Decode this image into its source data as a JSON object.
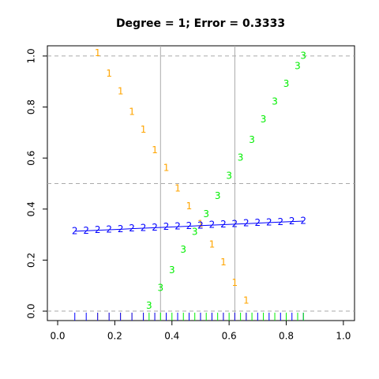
{
  "chart_data": {
    "type": "scatter",
    "title": "Degree = 1; Error = 0.3333",
    "xlim": [
      -0.036,
      1.039
    ],
    "ylim": [
      -0.037,
      1.04
    ],
    "xticks": [
      {
        "value": 0,
        "label": "0.0"
      },
      0.2,
      0.4,
      0.6,
      0.8,
      {
        "value": 1,
        "label": "1.0"
      }
    ],
    "yticks": [
      {
        "value": 0,
        "label": "0.0"
      },
      0.2,
      0.4,
      0.6,
      0.8,
      {
        "value": 1,
        "label": "1.0"
      }
    ],
    "vlines": [
      0.36,
      0.62
    ],
    "hlines": [
      0,
      0.5,
      1
    ],
    "rug": true,
    "series": [
      {
        "marker": "1",
        "color": "#ffa500",
        "x": [
          0.14,
          0.18,
          0.22,
          0.26,
          0.3,
          0.34,
          0.38,
          0.42,
          0.46,
          0.5,
          0.54,
          0.58,
          0.62,
          0.66
        ],
        "values": [
          1.01,
          0.93,
          0.86,
          0.78,
          0.71,
          0.63,
          0.56,
          0.48,
          0.41,
          0.34,
          0.26,
          0.19,
          0.11,
          0.04
        ]
      },
      {
        "marker": "2",
        "color": "#0000ff",
        "line": true,
        "x": [
          0.06,
          0.1,
          0.14,
          0.18,
          0.22,
          0.26,
          0.3,
          0.34,
          0.38,
          0.42,
          0.46,
          0.5,
          0.54,
          0.58,
          0.62,
          0.66,
          0.7,
          0.74,
          0.78,
          0.82,
          0.86
        ],
        "values": [
          0.313,
          0.315,
          0.317,
          0.319,
          0.321,
          0.323,
          0.325,
          0.327,
          0.329,
          0.331,
          0.333,
          0.335,
          0.337,
          0.339,
          0.341,
          0.343,
          0.345,
          0.347,
          0.349,
          0.351,
          0.353
        ]
      },
      {
        "marker": "3",
        "color": "#00ee00",
        "x": [
          0.32,
          0.36,
          0.4,
          0.44,
          0.48,
          0.52,
          0.56,
          0.6,
          0.64,
          0.68,
          0.72,
          0.76,
          0.8,
          0.84,
          0.86
        ],
        "values": [
          0.02,
          0.09,
          0.16,
          0.24,
          0.31,
          0.38,
          0.45,
          0.53,
          0.6,
          0.67,
          0.75,
          0.82,
          0.89,
          0.96,
          1.0
        ]
      }
    ]
  }
}
